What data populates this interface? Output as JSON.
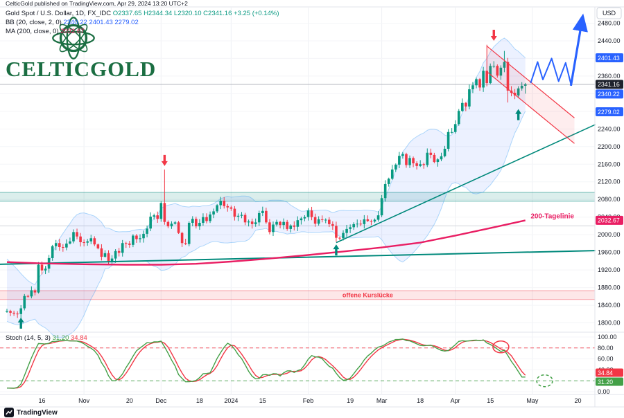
{
  "header": {
    "published_line": "CelticGold published on TradingView.com, Apr 29, 2024 13:20 UTC+2"
  },
  "logo": {
    "wordmark": "CELTICGOLD"
  },
  "legend": {
    "title": "Gold Spot / U.S. Dollar, 1D, FX_IDC",
    "ohlc": "O2337.65 H2344.34 L2320.10 C2341.16 +3.25 (+0.14%)",
    "bb_label": "BB (20, close, 2, 0)",
    "bb_values": "2340.22 2401.43 2279.02",
    "ma_label": "MA (200, close, 0)",
    "ma_value": "2032.67"
  },
  "stoch_legend": {
    "label": "Stoch (14, 5, 3)",
    "k_value": "31.20",
    "d_value": "34.84"
  },
  "footer": {
    "brand": "TradingView"
  },
  "axis": {
    "unit": "USD",
    "price_ticks": [
      2480,
      2440,
      2400,
      2360,
      2320,
      2280,
      2240,
      2200,
      2160,
      2120,
      2080,
      2040,
      2000,
      1960,
      1920,
      1880,
      1840,
      1800
    ],
    "price_labels": [
      {
        "text": "2401.43",
        "price": 2401.43,
        "color": "#2962ff"
      },
      {
        "text": "2341.16",
        "price": 2341.16,
        "color": "#1e222d"
      },
      {
        "text": "2340.22",
        "price": 2340.22,
        "color": "#2962ff"
      },
      {
        "text": "2279.02",
        "price": 2279.02,
        "color": "#2962ff"
      },
      {
        "text": "2032.67",
        "price": 2032.67,
        "color": "#e91e63"
      }
    ],
    "stoch_ticks": [
      100,
      80,
      60,
      40,
      20,
      0
    ],
    "stoch_labels": [
      {
        "text": "34.84",
        "value": 34.84,
        "color": "#f23645"
      },
      {
        "text": "31.20",
        "value": 31.2,
        "color": "#43a047"
      }
    ],
    "time_ticks": [
      {
        "label": "16",
        "day": 10
      },
      {
        "label": "Nov",
        "day": 22
      },
      {
        "label": "20",
        "day": 35
      },
      {
        "label": "Dec",
        "day": 44
      },
      {
        "label": "18",
        "day": 55
      },
      {
        "label": "2024",
        "day": 64
      },
      {
        "label": "15",
        "day": 73
      },
      {
        "label": "Feb",
        "day": 86
      },
      {
        "label": "19",
        "day": 98
      },
      {
        "label": "Mar",
        "day": 107
      },
      {
        "label": "18",
        "day": 118
      },
      {
        "label": "Apr",
        "day": 128
      },
      {
        "label": "15",
        "day": 138
      },
      {
        "label": "May",
        "day": 150
      },
      {
        "label": "20",
        "day": 163
      }
    ]
  },
  "chart_data": {
    "type": "candlestick",
    "title": "Gold Spot / U.S. Dollar",
    "interval": "1D",
    "exchange": "FX_IDC",
    "last_bar": {
      "open": 2337.65,
      "high": 2344.34,
      "low": 2320.1,
      "close": 2341.16,
      "change": "+3.25 (+0.14%)"
    },
    "visible_price_range": [
      1782,
      2520
    ],
    "start_date": "2023-10-02",
    "pre_closes": [
      1939,
      1934,
      1928,
      1922,
      1916,
      1910,
      1904,
      1898,
      1890,
      1882,
      1874,
      1866,
      1859,
      1852,
      1848,
      1845,
      1841,
      1836,
      1830,
      1825
    ],
    "closes": [
      1827,
      1823,
      1821,
      1820,
      1833,
      1861,
      1860,
      1874,
      1869,
      1932,
      1919,
      1923,
      1947,
      1974,
      1981,
      1972,
      1971,
      1980,
      1985,
      2006,
      1996,
      1983,
      1982,
      1985,
      1992,
      1978,
      1969,
      1950,
      1958,
      1940,
      1946,
      1963,
      1959,
      1981,
      1980,
      1977,
      1998,
      1990,
      1992,
      2002,
      2014,
      2041,
      2044,
      2036,
      2072,
      2029,
      2019,
      2025,
      2028,
      2004,
      1981,
      1979,
      2027,
      2036,
      2019,
      2027,
      2040,
      2031,
      2046,
      2053,
      2067,
      2077,
      2065,
      2062,
      2059,
      2041,
      2043,
      2045,
      2028,
      2030,
      2024,
      2028,
      2049,
      2054,
      2028,
      2006,
      2023,
      2029,
      2022,
      2029,
      2013,
      2021,
      2018,
      2033,
      2037,
      2040,
      2055,
      2040,
      2025,
      2035,
      2034,
      2034,
      2024,
      2020,
      1993,
      1992,
      2004,
      2013,
      2017,
      2024,
      2025,
      2024,
      2035,
      2031,
      2030,
      2034,
      2044,
      2083,
      2115,
      2127,
      2148,
      2159,
      2179,
      2183,
      2158,
      2174,
      2162,
      2156,
      2160,
      2158,
      2186,
      2181,
      2165,
      2171,
      2178,
      2195,
      2233,
      2233,
      2251,
      2281,
      2299,
      2291,
      2330,
      2339,
      2353,
      2334,
      2372,
      2344,
      2383,
      2383,
      2361,
      2379,
      2392,
      2327,
      2322,
      2316,
      2332,
      2338,
      2341.16
    ],
    "wick_overrides": {
      "4": {
        "low": 1810
      },
      "9": {
        "high": 1938
      },
      "45": {
        "high": 2148
      },
      "94": {
        "low": 1984
      },
      "137": {
        "high": 2431
      },
      "142": {
        "high": 2417
      },
      "143": {
        "low": 2300
      },
      "148": {
        "high": 2344.34,
        "low": 2320.1
      }
    },
    "bollinger": {
      "period": 20,
      "mult": 2,
      "last_middle": 2340.22,
      "last_upper": 2401.43,
      "last_lower": 2279.02,
      "fill": "rgba(41,98,255,0.09)",
      "edge": "rgba(33,150,243,0.35)"
    },
    "ma200": {
      "label": "200-Tagelinie",
      "last": 2032.67,
      "color": "#e91e63",
      "anchors": [
        [
          0,
          1938
        ],
        [
          10,
          1935
        ],
        [
          22,
          1933
        ],
        [
          34,
          1932
        ],
        [
          44,
          1932
        ],
        [
          54,
          1934
        ],
        [
          64,
          1939
        ],
        [
          75,
          1946
        ],
        [
          86,
          1954
        ],
        [
          96,
          1962
        ],
        [
          107,
          1971
        ],
        [
          118,
          1982
        ],
        [
          128,
          1998
        ],
        [
          138,
          2015
        ],
        [
          148,
          2032.67
        ]
      ]
    },
    "stochastic": {
      "label": "Stoch (14, 5, 3)",
      "k": 14,
      "smooth": 5,
      "d": 3,
      "last_k": 31.2,
      "last_d": 34.84,
      "k_color": "#43a047",
      "d_color": "#f23645",
      "overbought": 80,
      "oversold": 20
    },
    "zones": [
      {
        "name": "resistance-support-zone",
        "from": 2076,
        "to": 2096,
        "fill": "rgba(0,137,123,0.14)",
        "line": "rgba(0,137,123,0.55)",
        "label": ""
      },
      {
        "name": "open-gap-zone",
        "from": 1853,
        "to": 1873,
        "fill": "rgba(242,54,69,0.12)",
        "line": "rgba(242,54,69,0.45)",
        "label": "offene Kurslücke",
        "label_day": 103,
        "label_color": "#f23645"
      }
    ],
    "h_lines": [
      {
        "price": 2341.16,
        "color": "#b0b3bb",
        "width": 1
      },
      {
        "price": 2020,
        "color": "#cfd2d9",
        "width": 1
      }
    ],
    "trendlines": [
      {
        "name": "long-term-support-line",
        "from_day": -2,
        "from_price": 1933,
        "to_day": 168,
        "to_price": 1964,
        "color": "#00897b",
        "width": 2
      },
      {
        "name": "uptrend-line",
        "from_day": 94,
        "from_price": 1982,
        "to_day": 168,
        "to_price": 2250,
        "color": "#00897b",
        "width": 1.6
      }
    ],
    "flag": {
      "top": [
        [
          137,
          2428
        ],
        [
          162,
          2265
        ]
      ],
      "bottom": [
        [
          137,
          2370
        ],
        [
          162,
          2207
        ]
      ],
      "color": "#f23645",
      "fill": "rgba(242,54,69,0.09)"
    },
    "arrows": [
      {
        "dir": "down",
        "day": 45,
        "price": 2156,
        "color": "#f23645"
      },
      {
        "dir": "down",
        "day": 139,
        "price": 2440,
        "color": "#f23645"
      },
      {
        "dir": "up",
        "day": 4,
        "price": 1812,
        "color": "#00897b"
      },
      {
        "dir": "up",
        "day": 94,
        "price": 1978,
        "color": "#00897b"
      },
      {
        "dir": "up",
        "day": 146,
        "price": 2285,
        "color": "#00897b"
      }
    ],
    "projection": {
      "color": "#2962ff",
      "zigzag": [
        [
          149.5,
          2344
        ],
        [
          151.5,
          2392
        ],
        [
          153,
          2352
        ],
        [
          155.5,
          2400
        ],
        [
          157.5,
          2348
        ],
        [
          159.5,
          2390
        ],
        [
          161,
          2342
        ]
      ],
      "arrow": [
        [
          161,
          2338
        ],
        [
          164.3,
          2492
        ]
      ]
    },
    "stoch_circles": [
      {
        "day": 141,
        "value": 82,
        "color": "#f23645",
        "dashed": false
      },
      {
        "day": 153.5,
        "value": 20,
        "color": "#43a047",
        "dashed": true
      }
    ],
    "month_gridline_days": [
      22,
      44,
      64,
      86,
      107,
      128,
      150
    ]
  }
}
